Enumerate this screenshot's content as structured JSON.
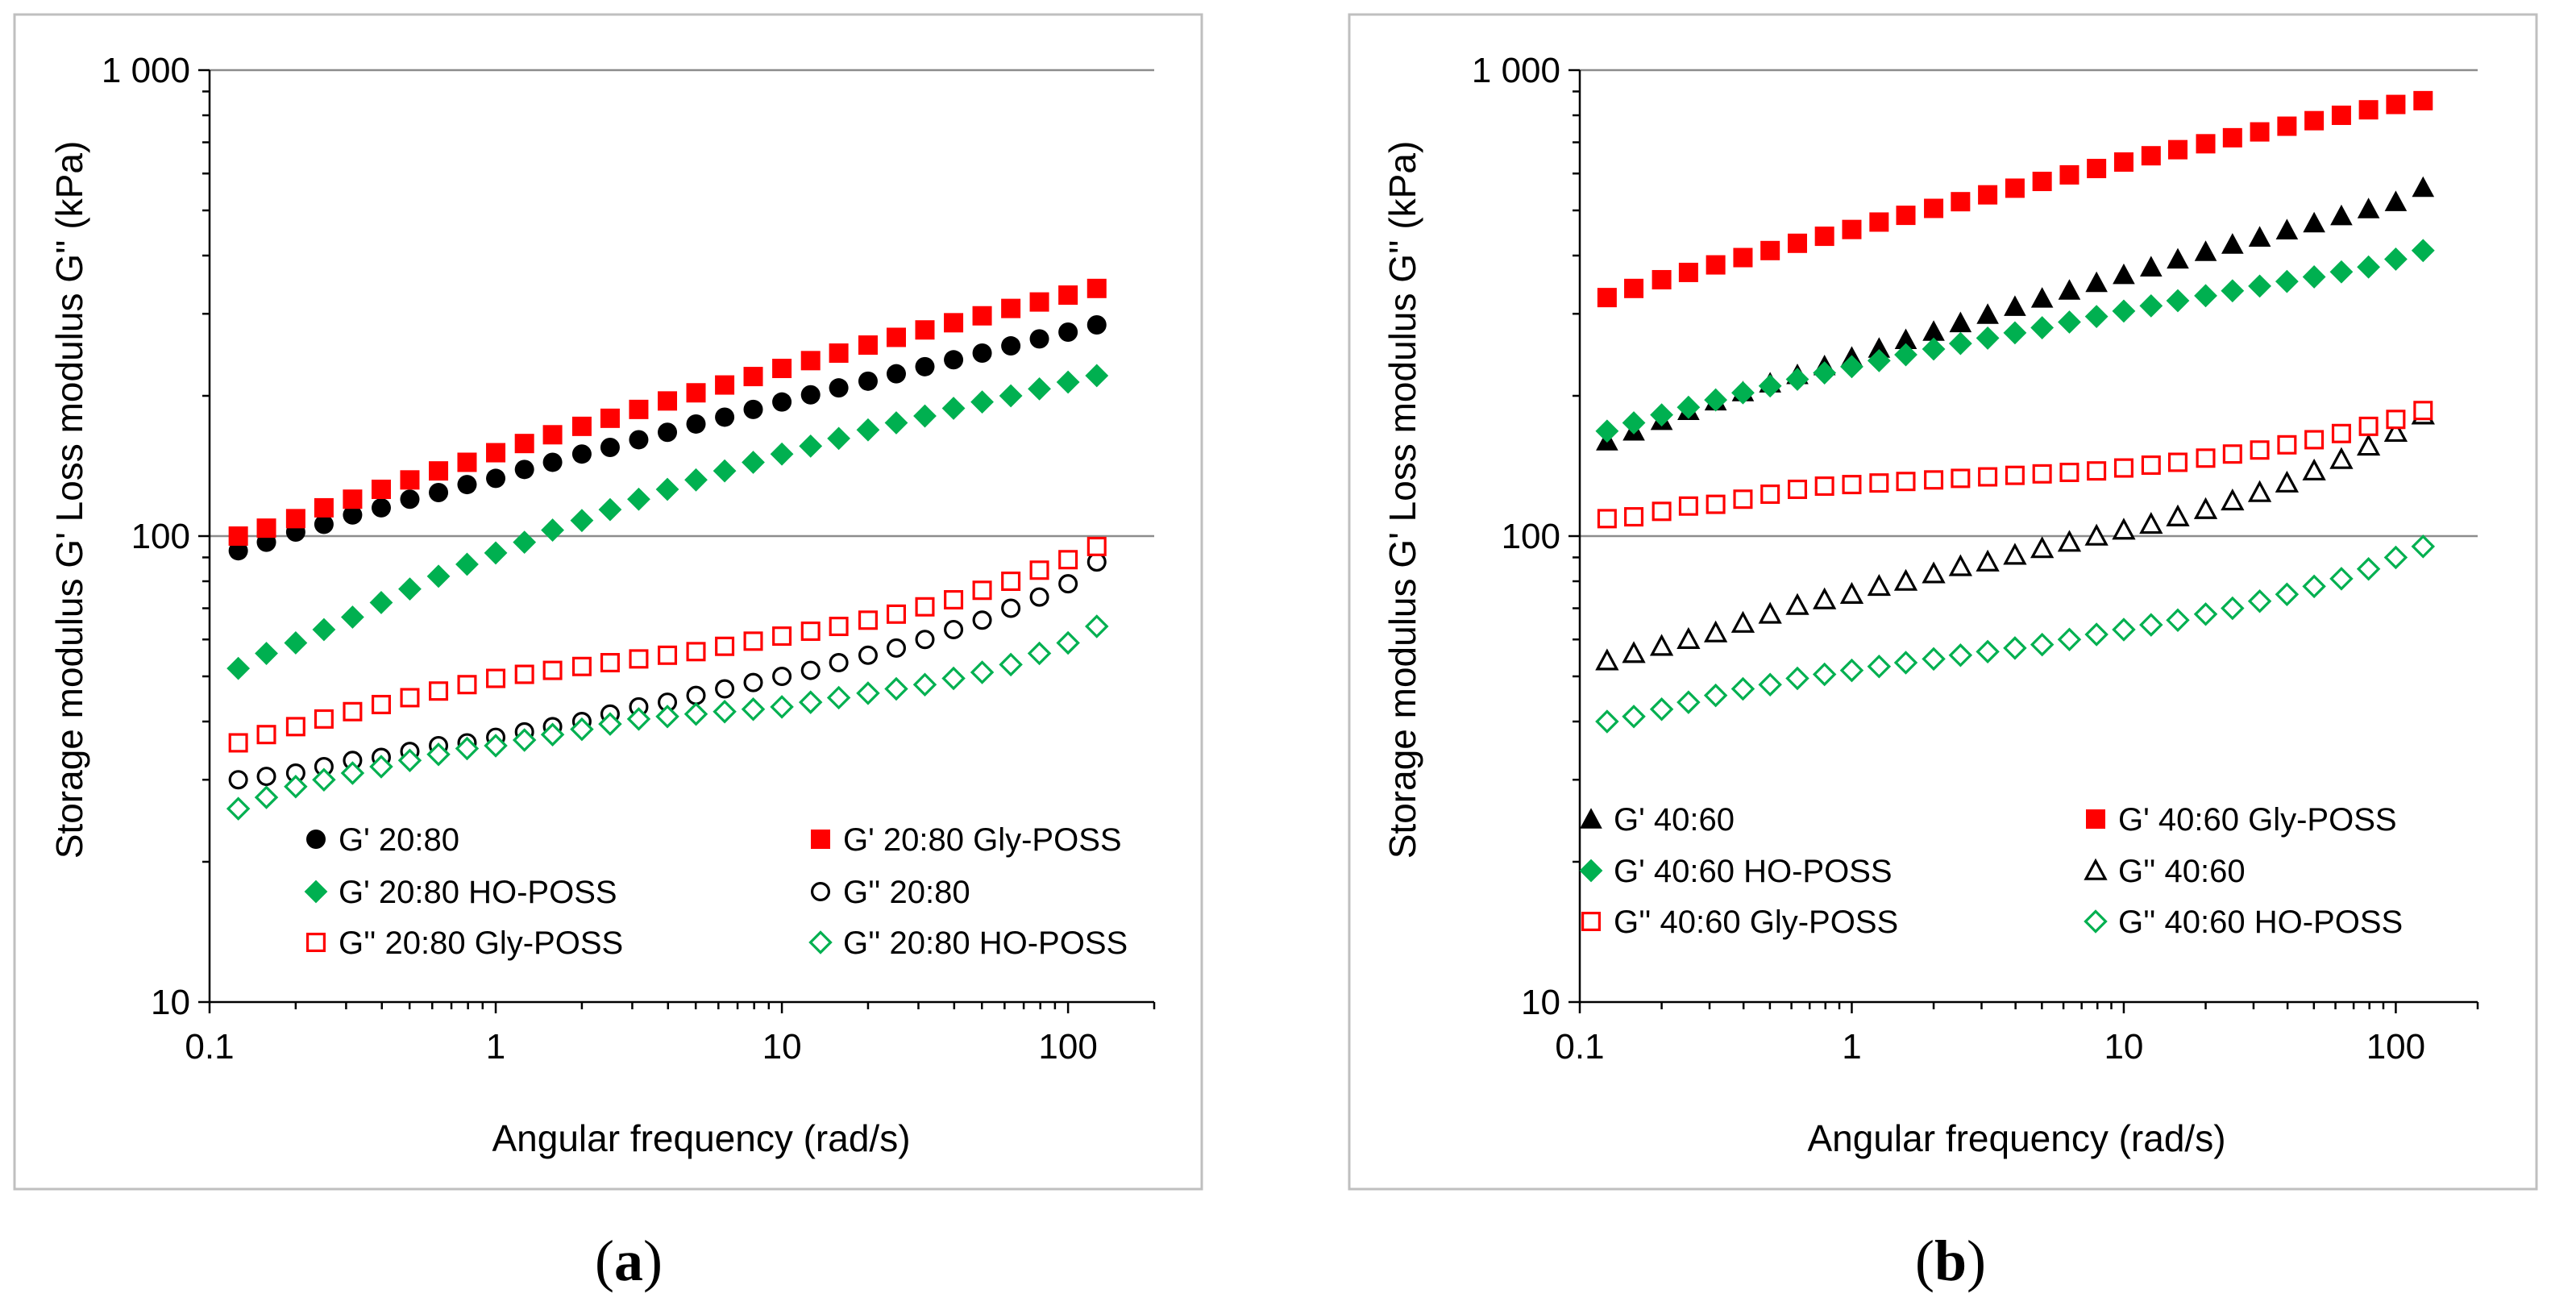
{
  "colors": {
    "red": "#ff0000",
    "green": "#00b050",
    "black": "#000000"
  },
  "chart_data": [
    {
      "type": "scatter",
      "panel_label": "a",
      "xlabel": "Angular frequency (rad/s)",
      "ylabel": "Storage modulus G' Loss modulus G''  (kPa)",
      "xscale": "log",
      "yscale": "log",
      "xlim": [
        0.1,
        200
      ],
      "ylim": [
        10,
        1000
      ],
      "xticks": [
        {
          "v": 0.1,
          "label": "0.1"
        },
        {
          "v": 1,
          "label": "1"
        },
        {
          "v": 10,
          "label": "10"
        },
        {
          "v": 100,
          "label": "100"
        }
      ],
      "yticks": [
        {
          "v": 10,
          "label": "10"
        },
        {
          "v": 100,
          "label": "100"
        },
        {
          "v": 1000,
          "label": "1 000"
        }
      ],
      "grid": "horizontal major",
      "legend_position": "bottom",
      "x": [
        0.126,
        0.158,
        0.2,
        0.251,
        0.316,
        0.398,
        0.501,
        0.631,
        0.794,
        1,
        1.26,
        1.58,
        2,
        2.51,
        3.16,
        3.98,
        5.01,
        6.31,
        7.94,
        10,
        12.6,
        15.8,
        20,
        25.1,
        31.6,
        39.8,
        50.1,
        63.1,
        79.4,
        100,
        126
      ],
      "series": [
        {
          "name": "G' 20:80",
          "marker": "circle",
          "fill": true,
          "color": "#000000",
          "values": [
            93,
            97,
            102,
            106,
            111,
            115,
            120,
            124,
            129,
            133,
            139,
            144,
            150,
            155,
            161,
            167,
            174,
            180,
            187,
            194,
            201,
            208,
            215,
            223,
            231,
            239,
            247,
            256,
            265,
            274,
            284
          ]
        },
        {
          "name": "G' 20:80 Gly-POSS",
          "marker": "square",
          "fill": true,
          "color": "#ff0000",
          "values": [
            100,
            104,
            109,
            115,
            120,
            126,
            132,
            138,
            144,
            151,
            158,
            165,
            172,
            179,
            187,
            195,
            203,
            211,
            220,
            229,
            238,
            247,
            257,
            267,
            277,
            287,
            297,
            308,
            318,
            329,
            340
          ]
        },
        {
          "name": "G' 20:80 HO-POSS",
          "marker": "diamond",
          "fill": true,
          "color": "#00b050",
          "values": [
            52,
            56,
            59,
            63,
            67,
            72,
            77,
            82,
            87,
            92,
            97,
            103,
            108,
            114,
            120,
            126,
            132,
            138,
            144,
            150,
            156,
            162,
            169,
            175,
            181,
            188,
            194,
            200,
            207,
            214,
            221
          ]
        },
        {
          "name": "G'' 20:80",
          "marker": "circle",
          "fill": false,
          "color": "#000000",
          "values": [
            30,
            30.5,
            31,
            32,
            33,
            33.5,
            34.5,
            35.5,
            36,
            37,
            38,
            39,
            40,
            41.5,
            43,
            44,
            45.5,
            47,
            48.5,
            50,
            51.5,
            53.5,
            55.5,
            57.5,
            60,
            63,
            66,
            70,
            74,
            79,
            88
          ]
        },
        {
          "name": "G'' 20:80 Gly-POSS",
          "marker": "square",
          "fill": false,
          "color": "#ff0000",
          "values": [
            36,
            37.5,
            39,
            40.5,
            42,
            43.5,
            45,
            46.5,
            48,
            49.5,
            50.5,
            51.5,
            52.5,
            53.5,
            54.5,
            55.5,
            56.5,
            58,
            59.5,
            61,
            62.5,
            64,
            66,
            68,
            70.5,
            73,
            76.5,
            80,
            84.5,
            89,
            95
          ]
        },
        {
          "name": "G'' 20:80 HO-POSS",
          "marker": "diamond",
          "fill": false,
          "color": "#00b050",
          "values": [
            26,
            27.5,
            29,
            30,
            31,
            32,
            33,
            34,
            35,
            35.5,
            36.5,
            37.5,
            38.5,
            39.5,
            40.5,
            41,
            41.5,
            42,
            42.5,
            43,
            44,
            45,
            46,
            47,
            48,
            49.5,
            51,
            53,
            56,
            59,
            64
          ]
        }
      ]
    },
    {
      "type": "scatter",
      "panel_label": "b",
      "xlabel": "Angular frequency (rad/s)",
      "ylabel": "Storage modulus G' Loss modulus G''  (kPa)",
      "xscale": "log",
      "yscale": "log",
      "xlim": [
        0.1,
        200
      ],
      "ylim": [
        10,
        1000
      ],
      "xticks": [
        {
          "v": 0.1,
          "label": "0.1"
        },
        {
          "v": 1,
          "label": "1"
        },
        {
          "v": 10,
          "label": "10"
        },
        {
          "v": 100,
          "label": "100"
        }
      ],
      "yticks": [
        {
          "v": 10,
          "label": "10"
        },
        {
          "v": 100,
          "label": "100"
        },
        {
          "v": 1000,
          "label": "1 000"
        }
      ],
      "grid": "horizontal major",
      "legend_position": "bottom",
      "x": [
        0.126,
        0.158,
        0.2,
        0.251,
        0.316,
        0.398,
        0.501,
        0.631,
        0.794,
        1,
        1.26,
        1.58,
        2,
        2.51,
        3.16,
        3.98,
        5.01,
        6.31,
        7.94,
        10,
        12.6,
        15.8,
        20,
        25.1,
        31.6,
        39.8,
        50.1,
        63.1,
        79.4,
        100,
        126
      ],
      "series": [
        {
          "name": "G' 40:60",
          "marker": "triangle",
          "fill": true,
          "color": "#000000",
          "values": [
            160,
            168,
            177,
            186,
            195,
            204,
            213,
            222,
            232,
            242,
            253,
            264,
            275,
            287,
            299,
            311,
            324,
            337,
            350,
            364,
            378,
            393,
            408,
            423,
            438,
            454,
            470,
            487,
            504,
            522,
            560
          ]
        },
        {
          "name": "G' 40:60 Gly-POSS",
          "marker": "square",
          "fill": true,
          "color": "#ff0000",
          "values": [
            325,
            340,
            355,
            368,
            382,
            396,
            410,
            425,
            440,
            455,
            472,
            488,
            505,
            522,
            540,
            558,
            577,
            596,
            615,
            635,
            655,
            675,
            695,
            716,
            737,
            758,
            779,
            800,
            822,
            844,
            860
          ]
        },
        {
          "name": "G' 40:60 HO-POSS",
          "marker": "diamond",
          "fill": true,
          "color": "#00b050",
          "values": [
            168,
            175,
            182,
            189,
            196,
            203,
            210,
            217,
            224,
            231,
            238,
            245,
            252,
            259,
            266,
            273,
            280,
            288,
            296,
            304,
            312,
            320,
            328,
            336,
            344,
            352,
            360,
            369,
            378,
            393,
            410
          ]
        },
        {
          "name": "G'' 40:60",
          "marker": "triangle",
          "fill": false,
          "color": "#000000",
          "values": [
            54,
            56,
            58,
            60,
            62,
            65,
            68,
            71,
            73,
            75,
            78,
            80,
            83,
            86,
            88,
            91,
            94,
            97,
            100,
            103,
            106,
            110,
            114,
            119,
            124,
            130,
            138,
            146,
            156,
            167,
            182
          ]
        },
        {
          "name": "G'' 40:60 Gly-POSS",
          "marker": "square",
          "fill": false,
          "color": "#ff0000",
          "values": [
            109,
            110,
            113,
            116,
            117,
            120,
            123,
            126,
            128,
            129,
            130,
            131,
            132,
            133,
            134,
            135,
            136,
            137,
            138,
            140,
            142,
            144,
            147,
            150,
            153,
            157,
            161,
            166,
            172,
            178,
            186
          ]
        },
        {
          "name": "G'' 40:60 HO-POSS",
          "marker": "diamond",
          "fill": false,
          "color": "#00b050",
          "values": [
            40,
            41,
            42.5,
            44,
            45.5,
            47,
            48,
            49.5,
            50.5,
            51.5,
            52.5,
            53.5,
            54.5,
            55.5,
            56.5,
            57.5,
            58.5,
            60,
            61.5,
            63,
            64.5,
            66,
            68,
            70,
            72.5,
            75,
            78,
            81,
            85,
            90,
            95
          ]
        }
      ]
    }
  ]
}
